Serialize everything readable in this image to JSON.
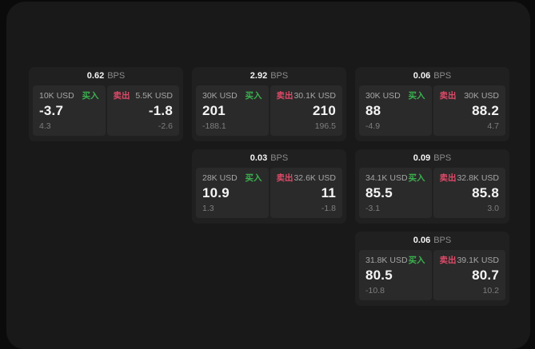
{
  "units": {
    "bps": "BPS"
  },
  "labels": {
    "buy": "买入",
    "sell": "卖出"
  },
  "colors": {
    "bg": "#0b0b0b",
    "panel": "#191919",
    "card": "#202020",
    "tile": "#2a2a2a",
    "buy": "#3bb14f",
    "sell": "#dd4a68",
    "text": "#f5f5f5",
    "muted": "#a6a6a6",
    "dim": "#7e7e7e"
  },
  "cards": [
    {
      "bps": "0.62",
      "buy": {
        "size": "10K USD",
        "value": "-3.7",
        "sub": "4.3"
      },
      "sell": {
        "size": "5.5K USD",
        "value": "-1.8",
        "sub": "-2.6"
      }
    },
    {
      "bps": "2.92",
      "buy": {
        "size": "30K USD",
        "value": "201",
        "sub": "-188.1"
      },
      "sell": {
        "size": "30.1K USD",
        "value": "210",
        "sub": "196.5"
      }
    },
    {
      "bps": "0.06",
      "buy": {
        "size": "30K USD",
        "value": "88",
        "sub": "-4.9"
      },
      "sell": {
        "size": "30K USD",
        "value": "88.2",
        "sub": "4.7"
      }
    },
    {
      "bps": "0.03",
      "buy": {
        "size": "28K USD",
        "value": "10.9",
        "sub": "1.3"
      },
      "sell": {
        "size": "32.6K USD",
        "value": "11",
        "sub": "-1.8"
      }
    },
    {
      "bps": "0.09",
      "buy": {
        "size": "34.1K USD",
        "value": "85.5",
        "sub": "-3.1"
      },
      "sell": {
        "size": "32.8K USD",
        "value": "85.8",
        "sub": "3.0"
      }
    },
    {
      "bps": "0.06",
      "buy": {
        "size": "31.8K USD",
        "value": "80.5",
        "sub": "-10.8"
      },
      "sell": {
        "size": "39.1K USD",
        "value": "80.7",
        "sub": "10.2"
      }
    }
  ]
}
